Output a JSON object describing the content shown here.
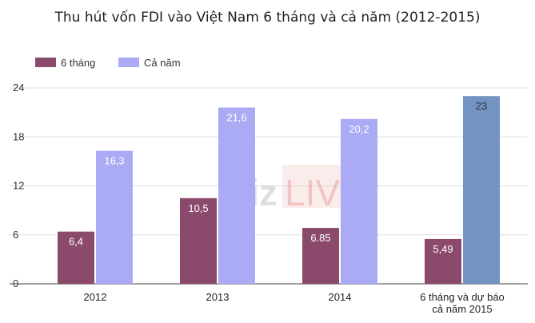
{
  "chart_data": {
    "type": "bar",
    "title": "Thu hút vốn FDI vào Việt Nam 6 tháng và cả năm (2012-2015)",
    "categories": [
      "2012",
      "2013",
      "2014",
      "6 tháng và dự báo\ncả năm 2015"
    ],
    "series": [
      {
        "name": "6 tháng",
        "color": "#8b4a6b",
        "values": [
          6.4,
          10.5,
          6.85,
          5.49
        ],
        "labels": [
          "6,4",
          "10,5",
          "6.85",
          "5,49"
        ]
      },
      {
        "name": "Cả năm",
        "color": "#aaaaf5",
        "values": [
          16.3,
          21.6,
          20.2,
          23
        ],
        "labels": [
          "16,3",
          "21,6",
          "20,2",
          "23"
        ]
      }
    ],
    "highlight_color": "#7393c2",
    "ylim": [
      0,
      24
    ],
    "yticks": [
      0,
      6,
      12,
      18,
      24
    ],
    "xlabel": "",
    "ylabel": "",
    "grid": true,
    "legend": "top-left",
    "watermark": {
      "part1": "Biz",
      "part2": "LIVE"
    }
  }
}
